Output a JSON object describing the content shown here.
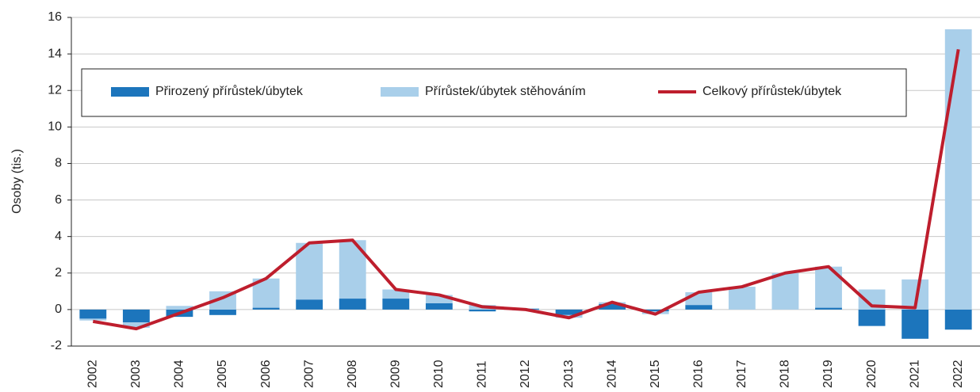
{
  "chart_data": {
    "type": "bar",
    "stacked": true,
    "y_label": "Osoby (tis.)",
    "categories": [
      "2002",
      "2003",
      "2004",
      "2005",
      "2006",
      "2007",
      "2008",
      "2009",
      "2010",
      "2011",
      "2012",
      "2013",
      "2014",
      "2015",
      "2016",
      "2017",
      "2018",
      "2019",
      "2020",
      "2021",
      "2022"
    ],
    "series": [
      {
        "name": "Přirozený přírůstek/úbytek",
        "type": "bar",
        "color": "#1c75bc",
        "values": [
          -0.5,
          -0.7,
          -0.4,
          -0.3,
          0.1,
          0.55,
          0.6,
          0.6,
          0.35,
          -0.1,
          0.05,
          -0.3,
          0.3,
          -0.1,
          0.25,
          0.0,
          0.0,
          0.1,
          -0.9,
          -1.6,
          -1.1
        ]
      },
      {
        "name": "Přírůstek/úbytek stěhováním",
        "type": "bar",
        "color": "#a9cfea",
        "values": [
          -0.1,
          -0.3,
          0.2,
          1.0,
          1.6,
          3.1,
          3.2,
          0.5,
          0.45,
          0.25,
          -0.05,
          -0.15,
          0.1,
          -0.15,
          0.7,
          1.25,
          2.0,
          2.25,
          1.1,
          1.65,
          15.35
        ]
      },
      {
        "name": "Celkový přírůstek/úbytek",
        "type": "line",
        "color": "#be1e2d",
        "values": [
          -0.65,
          -1.05,
          -0.2,
          0.65,
          1.7,
          3.65,
          3.8,
          1.1,
          0.8,
          0.15,
          0.0,
          -0.45,
          0.4,
          -0.25,
          0.95,
          1.25,
          2.0,
          2.35,
          0.2,
          0.1,
          14.25
        ]
      }
    ],
    "ylim": [
      -2,
      16
    ],
    "yticks": [
      -2,
      0,
      2,
      4,
      6,
      8,
      10,
      12,
      14,
      16
    ],
    "grid": true
  }
}
